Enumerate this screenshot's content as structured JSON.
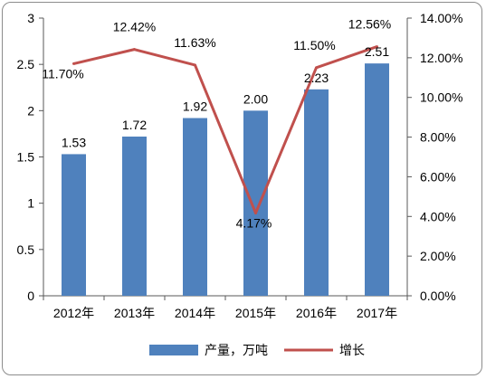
{
  "colors": {
    "bar": "#4f81bd",
    "line": "#c0504d",
    "axis": "#595959",
    "grid": "#d9d9d9"
  },
  "chart_data": {
    "type": "bar",
    "categories": [
      "2012年",
      "2013年",
      "2014年",
      "2015年",
      "2016年",
      "2017年"
    ],
    "series": [
      {
        "name": "产量，万吨",
        "type": "bar",
        "axis": "left",
        "values": [
          1.53,
          1.72,
          1.92,
          2.0,
          2.23,
          2.51
        ],
        "labels": [
          "1.53",
          "1.72",
          "1.92",
          "2.00",
          "2.23",
          "2.51"
        ]
      },
      {
        "name": "增长",
        "type": "line",
        "axis": "right",
        "values": [
          11.7,
          12.42,
          11.63,
          4.17,
          11.5,
          12.56
        ],
        "labels": [
          "11.70%",
          "12.42%",
          "11.63%",
          "4.17%",
          "11.50%",
          "12.56%"
        ]
      }
    ],
    "y_left": {
      "lim": [
        0,
        3
      ],
      "ticks": [
        "0",
        "0.5",
        "1",
        "1.5",
        "2",
        "2.5",
        "3"
      ]
    },
    "y_right": {
      "lim": [
        0,
        14
      ],
      "ticks": [
        "0.00%",
        "2.00%",
        "4.00%",
        "6.00%",
        "8.00%",
        "10.00%",
        "12.00%",
        "14.00%"
      ]
    },
    "grid": false,
    "legend": "bottom"
  }
}
